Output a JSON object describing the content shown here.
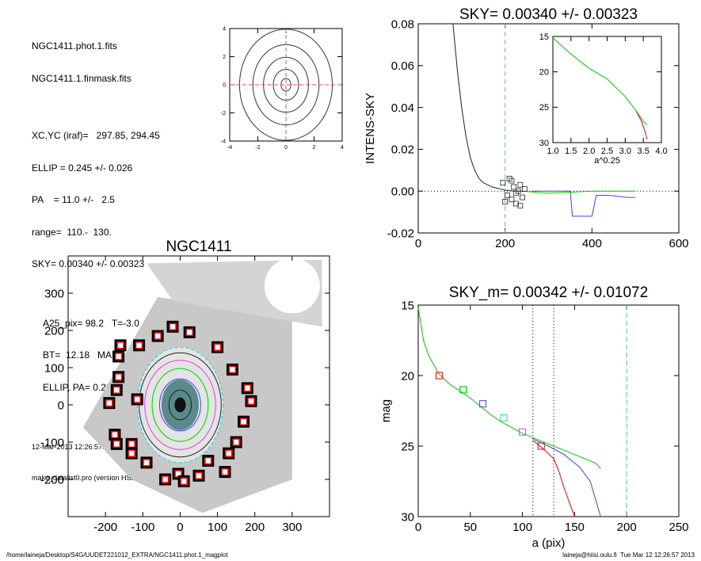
{
  "info": {
    "file1": "NGC1411.phot.1.fits",
    "file2": "NGC1411.1.finmask.fits",
    "xcyc": "XC,YC (iraf)=   297.85, 294.45",
    "ellip": "ELLIP = 0.245 +/- 0.026",
    "pa": "PA    = 11.0 +/-   2.5",
    "range": "range=  110.-  130.",
    "sky": "SKY= 0.00340 +/- 0.00323",
    "a25": "A25_pix= 98.2   T=-3.0   R",
    "bt": "BT=  12.18   MABS=-18.18",
    "ellip_pa": "ELLIP, PA= 0.282   11.7",
    "date": "12-Mar-2013 12:26:57.00",
    "program": "make_datalist0.pro (version HS230610)"
  },
  "footer": {
    "path": "/home/laineja/Desktop/S4G/UUDET221012_EXTRA/NGC1411.phot.1_magplot",
    "user_time": "laineja@hiisi.oulu.fi  Tue Mar 12 12:26:57 2013"
  },
  "colors": {
    "red": "#ff0000",
    "green": "#00d000",
    "blue": "#4040ff",
    "cyan": "#00e0e0",
    "magenta": "#e040e0",
    "dark": "#202020"
  },
  "chart_data": [
    {
      "id": "contour",
      "type": "contour",
      "title": "",
      "xlim": [
        -4,
        4
      ],
      "ylim": [
        -4,
        4
      ],
      "xticks": [
        "-4",
        "-2",
        "0",
        "2",
        "4"
      ],
      "yticks": [
        "-4",
        "-2",
        "0",
        "2",
        "4"
      ],
      "contours": [
        {
          "a": 0.35,
          "b": 0.45
        },
        {
          "a": 0.9,
          "b": 1.1
        },
        {
          "a": 1.6,
          "b": 1.95
        },
        {
          "a": 2.35,
          "b": 2.85
        },
        {
          "a": 3.3,
          "b": 3.95
        }
      ],
      "crosshair": [
        0,
        0
      ]
    },
    {
      "id": "intens",
      "type": "line",
      "title": "SKY= 0.00340 +/- 0.00323",
      "xlabel": "",
      "ylabel": "INTENS-SKY",
      "xlim": [
        0,
        600
      ],
      "ylim": [
        -0.02,
        0.08
      ],
      "xticks": [
        "0",
        "200",
        "400",
        "600"
      ],
      "xtick_values": [
        0,
        200,
        400,
        600
      ],
      "yticks": [
        "-0.02",
        "0.00",
        "0.02",
        "0.04",
        "0.06",
        "0.08"
      ],
      "ytick_values": [
        -0.02,
        0.0,
        0.02,
        0.04,
        0.06,
        0.08
      ],
      "vline": 200,
      "series": [
        {
          "color": "dark",
          "x": [
            80,
            90,
            100,
            110,
            120,
            130,
            140,
            150,
            160,
            170,
            180,
            190,
            200,
            220,
            240
          ],
          "y": [
            0.08,
            0.058,
            0.04,
            0.026,
            0.016,
            0.01,
            0.006,
            0.004,
            0.003,
            0.002,
            0.0015,
            0.001,
            0.0005,
            0.0,
            0.0
          ]
        },
        {
          "color": "blue",
          "x": [
            260,
            300,
            350,
            355,
            400,
            410,
            440,
            480,
            500
          ],
          "y": [
            0.0,
            0.0,
            0.0,
            -0.012,
            -0.012,
            -0.002,
            -0.002,
            -0.003,
            -0.003
          ]
        },
        {
          "color": "green",
          "x": [
            240,
            300,
            400,
            500
          ],
          "y": [
            0.0,
            -0.001,
            0.0,
            0.0
          ]
        }
      ],
      "squares": {
        "x": [
          195,
          205,
          210,
          215,
          220,
          225,
          230,
          235,
          240,
          245,
          200,
          215,
          225,
          235
        ],
        "y": [
          0.004,
          -0.002,
          0.006,
          -0.004,
          0.002,
          -0.006,
          0.0,
          0.003,
          -0.003,
          0.001,
          -0.005,
          0.005,
          -0.001,
          -0.007
        ]
      }
    },
    {
      "id": "inset",
      "type": "line",
      "title": "",
      "xlabel": "a^0.25",
      "xlim": [
        1.0,
        4.0
      ],
      "ylim": [
        30,
        15
      ],
      "xticks": [
        "1.0",
        "1.5",
        "2.0",
        "2.5",
        "3.0",
        "3.5",
        "4.0"
      ],
      "yticks": [
        "15",
        "20",
        "25",
        "30"
      ],
      "series": [
        {
          "color": "green",
          "x": [
            1.0,
            1.5,
            2.0,
            2.5,
            3.0,
            3.3,
            3.5,
            3.6
          ],
          "y": [
            15.2,
            17.5,
            19.5,
            21.0,
            23.5,
            25.5,
            27.0,
            27.5
          ]
        },
        {
          "color": "red",
          "x": [
            3.3,
            3.45,
            3.55,
            3.6
          ],
          "y": [
            25.5,
            27.0,
            28.5,
            29.5
          ]
        }
      ]
    },
    {
      "id": "image",
      "type": "image",
      "title": "NGC1411",
      "xlim": [
        -300,
        400
      ],
      "ylim": [
        -300,
        400
      ],
      "xticks": [
        "-200",
        "-100",
        "0",
        "100",
        "200",
        "300"
      ],
      "xtick_values": [
        -200,
        -100,
        0,
        100,
        200,
        300
      ],
      "yticks": [
        "-200",
        "-100",
        "0",
        "100",
        "200",
        "300"
      ],
      "ytick_values": [
        -200,
        -100,
        0,
        100,
        200,
        300
      ],
      "markers": {
        "x": [
          -190,
          -175,
          -170,
          -170,
          -165,
          -165,
          -160,
          -130,
          -130,
          -115,
          -110,
          -90,
          -60,
          -40,
          -20,
          -5,
          10,
          25,
          50,
          75,
          100,
          120,
          130,
          140,
          150,
          170,
          180,
          190
        ],
        "y": [
          5,
          -80,
          -105,
          40,
          130,
          75,
          160,
          -105,
          -130,
          15,
          160,
          -155,
          185,
          -200,
          210,
          -185,
          -205,
          195,
          -190,
          -150,
          155,
          -180,
          -130,
          95,
          -100,
          -45,
          45,
          10
        ]
      },
      "ellipses": [
        {
          "a": 115,
          "b": 155,
          "color": "cyan"
        },
        {
          "a": 110,
          "b": 140,
          "color": "dark"
        },
        {
          "a": 95,
          "b": 120,
          "color": "magenta"
        },
        {
          "a": 75,
          "b": 98,
          "color": "green"
        },
        {
          "a": 55,
          "b": 70,
          "color": "blue"
        },
        {
          "a": 30,
          "b": 40,
          "color": "dark"
        }
      ]
    },
    {
      "id": "mag",
      "type": "line",
      "title": "SKY_m=  0.00342 +/- 0.01072",
      "xlabel": "a (pix)",
      "ylabel": "mag",
      "xlim": [
        0,
        250
      ],
      "ylim": [
        30,
        15
      ],
      "xticks": [
        "0",
        "50",
        "100",
        "150",
        "200",
        "250"
      ],
      "xtick_values": [
        0,
        50,
        100,
        150,
        200,
        250
      ],
      "yticks": [
        "15",
        "20",
        "25",
        "30"
      ],
      "ytick_values": [
        15,
        20,
        25,
        30
      ],
      "vlines_dotted": [
        110,
        130
      ],
      "vline_dashed": 200,
      "series": [
        {
          "color": "green",
          "x": [
            0,
            5,
            10,
            20,
            30,
            40,
            50,
            60,
            70,
            80,
            90,
            100,
            110,
            120,
            130,
            140,
            150,
            160,
            170,
            175
          ],
          "y": [
            15.2,
            17.5,
            18.6,
            19.9,
            20.6,
            21.1,
            21.6,
            22.2,
            22.8,
            23.3,
            23.7,
            24.1,
            24.4,
            24.7,
            25.0,
            25.3,
            25.6,
            25.9,
            26.2,
            26.6
          ]
        },
        {
          "color": "red",
          "x": [
            110,
            120,
            130,
            135,
            140,
            145,
            150
          ],
          "y": [
            24.6,
            25.2,
            25.9,
            26.8,
            28.0,
            29.0,
            30.0
          ]
        },
        {
          "color": "blue",
          "x": [
            110,
            125,
            140,
            155,
            165,
            175
          ],
          "y": [
            24.5,
            25.0,
            25.6,
            26.5,
            27.5,
            30.0
          ]
        }
      ],
      "squares": [
        {
          "x": 20,
          "y": 20.0,
          "color": "red"
        },
        {
          "x": 43,
          "y": 21.0,
          "color": "green"
        },
        {
          "x": 62,
          "y": 22.0,
          "color": "blue"
        },
        {
          "x": 82,
          "y": 23.0,
          "color": "cyan"
        },
        {
          "x": 100,
          "y": 24.0,
          "color": "magenta"
        },
        {
          "x": 118,
          "y": 25.0,
          "color": "red"
        }
      ]
    }
  ]
}
